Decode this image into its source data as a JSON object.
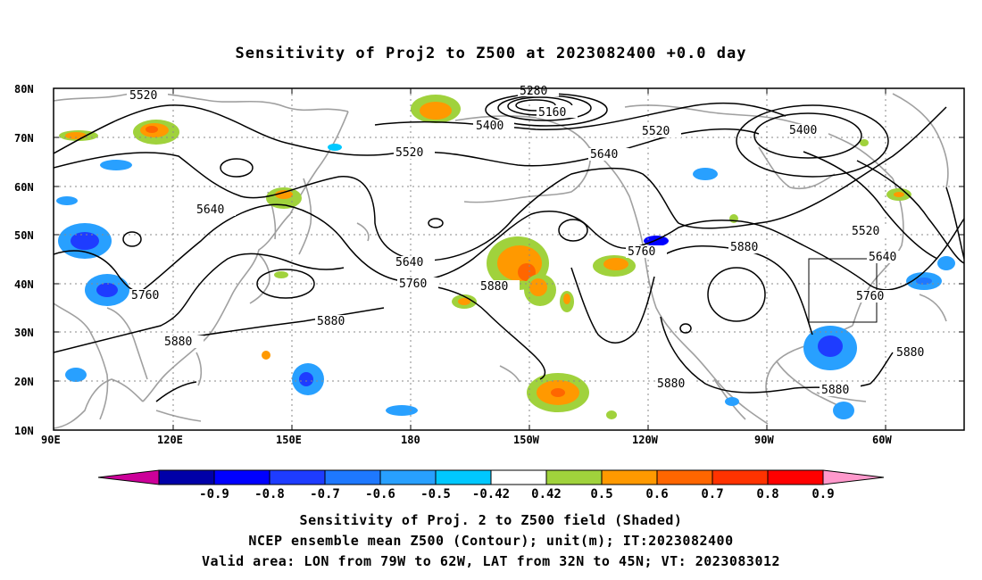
{
  "title": "Sensitivity of Proj2 to Z500 at 2023082400 +0.0 day",
  "lat_labels": [
    "80N",
    "70N",
    "60N",
    "50N",
    "40N",
    "30N",
    "20N",
    "10N"
  ],
  "lon_labels": [
    "90E",
    "120E",
    "150E",
    "180",
    "150W",
    "120W",
    "90W",
    "60W"
  ],
  "contour_labels": [
    "5520",
    "5280",
    "5160",
    "5400",
    "5520",
    "5520",
    "5640",
    "5400",
    "5640",
    "5520",
    "5640",
    "5760",
    "5760",
    "5880",
    "5760",
    "5880",
    "5640",
    "5760",
    "5880",
    "5880",
    "5880",
    "5880",
    "5880"
  ],
  "colorbar": {
    "labels": [
      "-0.9",
      "-0.8",
      "-0.7",
      "-0.6",
      "-0.5",
      "-0.42",
      "0.42",
      "0.5",
      "0.6",
      "0.7",
      "0.8",
      "0.9"
    ],
    "colors": [
      "#cc0099",
      "#0000a8",
      "#0000ff",
      "#1e3cff",
      "#1e78ff",
      "#28a0ff",
      "#00c8ff",
      "#ffffff",
      "#a0d23c",
      "#ff9900",
      "#ff6600",
      "#ff3300",
      "#ff0000",
      "#ff99cc"
    ]
  },
  "caption": {
    "line1": "Sensitivity of Proj. 2 to Z500 field (Shaded)",
    "line2": "NCEP ensemble mean Z500 (Contour); unit(m); IT:2023082400",
    "line3": "Valid area: LON from 79W to 62W, LAT from 32N to 45N; VT: 2023083012"
  },
  "map_data": {
    "projection": "cylindrical",
    "lon_range": [
      "90E",
      "50W"
    ],
    "lat_range": [
      "10N",
      "80N"
    ],
    "shaded_field": "Sensitivity of Proj. 2 to Z500",
    "contour_field": "Z500 (m)",
    "valid_box": {
      "lon": [
        "79W",
        "62W"
      ],
      "lat": [
        "32N",
        "45N"
      ]
    },
    "grid": "dotted"
  }
}
